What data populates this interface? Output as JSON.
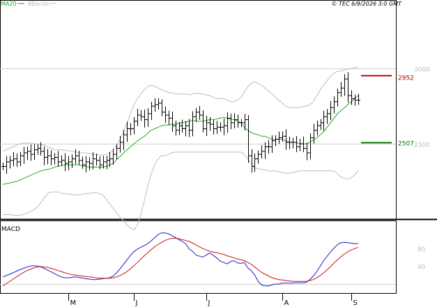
{
  "chart_data": [
    {
      "type": "line",
      "panel": "price",
      "title": "© TEC 6/9/2026 3:0 GMT",
      "chart_style": "ohlc",
      "y_axis": "right",
      "ylim": [
        2000,
        3450
      ],
      "yticks": [
        {
          "value": 3000,
          "label": "3000"
        },
        {
          "value": 2500,
          "label": "2500"
        }
      ],
      "grid": "horizontal",
      "legend": {
        "placement": "top-left",
        "entries": [
          {
            "label": "MA20",
            "color": "#22aa22"
          },
          {
            "label": "BBands",
            "color": "#bcbcbc"
          }
        ]
      },
      "x_labels": [
        {
          "label": "M",
          "index": 19
        },
        {
          "label": "J",
          "index": 38
        },
        {
          "label": "J",
          "index": 59
        },
        {
          "label": "A",
          "index": 81
        },
        {
          "label": "S",
          "index": 101
        }
      ],
      "close": [
        2350,
        2380,
        2390,
        2400,
        2380,
        2420,
        2440,
        2450,
        2430,
        2460,
        2470,
        2450,
        2410,
        2420,
        2400,
        2410,
        2380,
        2390,
        2370,
        2380,
        2400,
        2420,
        2390,
        2360,
        2380,
        2370,
        2400,
        2390,
        2360,
        2380,
        2390,
        2400,
        2430,
        2470,
        2510,
        2560,
        2600,
        2600,
        2650,
        2690,
        2680,
        2660,
        2700,
        2750,
        2760,
        2770,
        2710,
        2690,
        2670,
        2620,
        2590,
        2620,
        2600,
        2620,
        2590,
        2680,
        2710,
        2690,
        2600,
        2640,
        2630,
        2600,
        2610,
        2610,
        2620,
        2670,
        2640,
        2660,
        2640,
        2640,
        2660,
        2420,
        2350,
        2400,
        2430,
        2450,
        2480,
        2480,
        2520,
        2530,
        2540,
        2550,
        2510,
        2510,
        2510,
        2480,
        2500,
        2470,
        2440,
        2540,
        2590,
        2620,
        2640,
        2680,
        2700,
        2740,
        2780,
        2840,
        2870,
        2930,
        2820,
        2800,
        2790,
        2790
      ],
      "ma20": [
        2230,
        2235,
        2240,
        2245,
        2250,
        2260,
        2270,
        2280,
        2290,
        2300,
        2310,
        2320,
        2325,
        2330,
        2335,
        2345,
        2350,
        2355,
        2360,
        2360,
        2360,
        2360,
        2360,
        2355,
        2350,
        2345,
        2345,
        2345,
        2345,
        2345,
        2350,
        2360,
        2370,
        2395,
        2415,
        2440,
        2460,
        2480,
        2500,
        2520,
        2535,
        2550,
        2570,
        2590,
        2600,
        2610,
        2620,
        2625,
        2625,
        2630,
        2630,
        2635,
        2640,
        2645,
        2650,
        2655,
        2650,
        2650,
        2650,
        2655,
        2660,
        2660,
        2665,
        2670,
        2675,
        2670,
        2665,
        2660,
        2650,
        2640,
        2610,
        2590,
        2575,
        2565,
        2560,
        2550,
        2550,
        2540,
        2530,
        2530,
        2530,
        2530,
        2520,
        2510,
        2510,
        2510,
        2500,
        2500,
        2500,
        2510,
        2525,
        2540,
        2560,
        2580,
        2610,
        2640,
        2670,
        2700,
        2720,
        2740,
        2760,
        2780,
        2800,
        2820
      ],
      "bb_upper": [
        2450,
        2460,
        2470,
        2480,
        2490,
        2500,
        2505,
        2505,
        2505,
        2500,
        2500,
        2495,
        2490,
        2480,
        2470,
        2460,
        2460,
        2460,
        2455,
        2455,
        2450,
        2445,
        2440,
        2440,
        2440,
        2435,
        2430,
        2430,
        2425,
        2425,
        2430,
        2440,
        2460,
        2490,
        2530,
        2580,
        2640,
        2700,
        2760,
        2800,
        2830,
        2860,
        2880,
        2890,
        2880,
        2870,
        2860,
        2850,
        2840,
        2840,
        2830,
        2830,
        2830,
        2830,
        2825,
        2830,
        2835,
        2835,
        2830,
        2825,
        2820,
        2810,
        2800,
        2800,
        2800,
        2790,
        2780,
        2780,
        2790,
        2810,
        2840,
        2880,
        2900,
        2910,
        2900,
        2890,
        2870,
        2850,
        2830,
        2810,
        2790,
        2770,
        2750,
        2740,
        2740,
        2740,
        2740,
        2750,
        2750,
        2760,
        2780,
        2820,
        2860,
        2890,
        2920,
        2950,
        2970,
        2980,
        2985,
        2990,
        2995,
        3000,
        3005,
        3010
      ],
      "bb_lower": [
        2030,
        2030,
        2030,
        2025,
        2025,
        2025,
        2030,
        2040,
        2050,
        2060,
        2080,
        2110,
        2140,
        2170,
        2180,
        2180,
        2180,
        2170,
        2170,
        2165,
        2165,
        2160,
        2160,
        2165,
        2170,
        2170,
        2175,
        2175,
        2170,
        2160,
        2130,
        2100,
        2070,
        2040,
        2010,
        1990,
        1960,
        1940,
        1930,
        1960,
        2030,
        2120,
        2220,
        2300,
        2360,
        2400,
        2420,
        2420,
        2430,
        2440,
        2445,
        2445,
        2445,
        2445,
        2445,
        2445,
        2445,
        2445,
        2445,
        2445,
        2445,
        2445,
        2445,
        2445,
        2445,
        2445,
        2445,
        2445,
        2445,
        2445,
        2430,
        2400,
        2370,
        2340,
        2335,
        2330,
        2325,
        2320,
        2320,
        2320,
        2315,
        2310,
        2305,
        2305,
        2310,
        2315,
        2320,
        2320,
        2320,
        2320,
        2320,
        2320,
        2320,
        2320,
        2320,
        2320,
        2320,
        2300,
        2280,
        2270,
        2265,
        2275,
        2295,
        2325
      ],
      "levels": [
        {
          "value": 2952,
          "label": "2952",
          "color": "#bb0000"
        },
        {
          "value": 2507,
          "label": "2507",
          "color": "#007700"
        }
      ]
    },
    {
      "type": "line",
      "panel": "macd",
      "title": "MACD",
      "y_axis": "right",
      "ylim": [
        -20,
        140
      ],
      "yticks": [
        {
          "value": 80,
          "label": "80"
        },
        {
          "value": 40,
          "label": "40"
        }
      ],
      "grid": "horizontal",
      "series": [
        {
          "name": "",
          "color": "#1a1acc",
          "values": [
            16,
            19,
            22,
            25,
            29,
            32,
            35,
            38,
            40,
            41,
            40,
            38,
            35,
            31,
            27,
            23,
            19,
            16,
            14,
            14,
            15,
            16,
            15,
            14,
            12,
            11,
            10,
            10,
            11,
            12,
            13,
            14,
            18,
            25,
            34,
            44,
            54,
            64,
            72,
            78,
            82,
            86,
            90,
            96,
            103,
            110,
            114,
            114,
            112,
            108,
            104,
            99,
            95,
            90,
            78,
            73,
            65,
            62,
            60,
            65,
            69,
            64,
            58,
            51,
            48,
            45,
            50,
            52,
            47,
            46,
            48,
            36,
            30,
            20,
            6,
            -2,
            -4,
            -4,
            -2,
            0,
            0,
            2,
            2,
            2,
            2,
            3,
            3,
            3,
            4,
            10,
            18,
            28,
            40,
            52,
            62,
            72,
            80,
            88,
            92,
            93,
            92,
            91,
            90,
            90
          ]
        },
        {
          "name": "",
          "color": "#cc1111",
          "values": [
            -4,
            1,
            6,
            11,
            16,
            21,
            26,
            30,
            33,
            36,
            38,
            39,
            38,
            37,
            35,
            33,
            30,
            28,
            25,
            23,
            21,
            20,
            19,
            18,
            17,
            16,
            15,
            14,
            13,
            13,
            13,
            13,
            14,
            16,
            19,
            23,
            28,
            34,
            41,
            48,
            56,
            63,
            70,
            77,
            83,
            88,
            93,
            97,
            100,
            102,
            102,
            101,
            99,
            97,
            95,
            91,
            87,
            83,
            79,
            76,
            73,
            71,
            70,
            68,
            66,
            63,
            61,
            58,
            56,
            54,
            52,
            48,
            44,
            38,
            32,
            26,
            22,
            18,
            14,
            12,
            10,
            9,
            8,
            7,
            6,
            6,
            6,
            6,
            6,
            8,
            10,
            14,
            19,
            25,
            32,
            39,
            47,
            54,
            61,
            67,
            72,
            76,
            79,
            82
          ]
        }
      ],
      "reference_line": 0
    }
  ]
}
